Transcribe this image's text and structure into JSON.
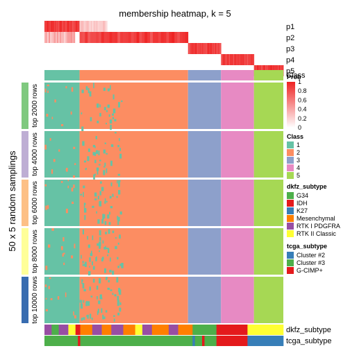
{
  "chart_data": {
    "type": "heatmap",
    "title": "membership heatmap, k = 5",
    "ylabel": "50 x 5 random samplings",
    "prob_rows": [
      "p1",
      "p2",
      "p3",
      "p4",
      "p5"
    ],
    "class_label": "Class",
    "bottom_tracks": [
      "dkfz_subtype",
      "tcga_subtype"
    ],
    "row_groups": [
      "top 2000 rows",
      "top 4000 rows",
      "top 6000 rows",
      "top 8000 rows",
      "top 10000 rows"
    ],
    "row_group_colors": [
      "#7FC97F",
      "#BEAED4",
      "#FDC086",
      "#FFFF99",
      "#386CB0"
    ],
    "classes": [
      {
        "label": "1",
        "color": "#66C2A5"
      },
      {
        "label": "2",
        "color": "#FC8D62"
      },
      {
        "label": "3",
        "color": "#8DA0CB"
      },
      {
        "label": "4",
        "color": "#E78AC3"
      },
      {
        "label": "5",
        "color": "#A6D854"
      }
    ],
    "class_column_fractions": [
      0.147,
      0.454,
      0.138,
      0.138,
      0.123
    ],
    "prob_legend": {
      "title": "Prob",
      "ticks": [
        "1",
        "0.8",
        "0.6",
        "0.4",
        "0.2",
        "0"
      ],
      "color_low": "#FFFFFF",
      "color_high": "#EE2222"
    },
    "dkfz_legend": {
      "title": "dkfz_subtype",
      "items": [
        {
          "label": "G34",
          "color": "#4DAF4A"
        },
        {
          "label": "IDH",
          "color": "#E41A1C"
        },
        {
          "label": "K27",
          "color": "#377EB8"
        },
        {
          "label": "Mesenchymal",
          "color": "#FF7F00"
        },
        {
          "label": "RTK I PDGFRA",
          "color": "#984EA3"
        },
        {
          "label": "RTK II Classic",
          "color": "#FFFF33"
        }
      ]
    },
    "tcga_legend": {
      "title": "tcga_subtype",
      "items": [
        {
          "label": "Cluster #2",
          "color": "#377EB8"
        },
        {
          "label": "Cluster #3",
          "color": "#4DAF4A"
        },
        {
          "label": "G-CIMP+",
          "color": "#E41A1C"
        }
      ]
    }
  }
}
